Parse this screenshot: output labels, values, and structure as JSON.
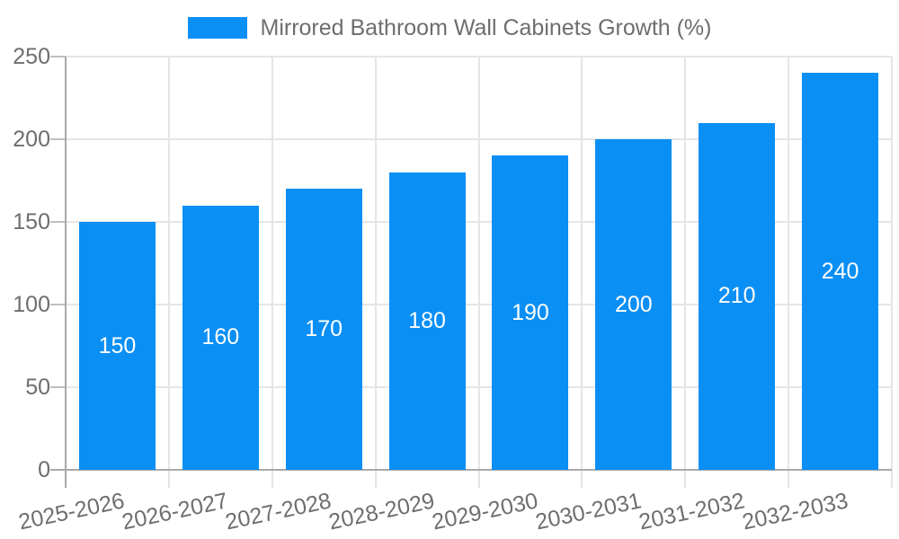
{
  "legend": {
    "series_label": "Mirrored Bathroom Wall Cabinets Growth (%)"
  },
  "chart_data": {
    "type": "bar",
    "title": "",
    "xlabel": "",
    "ylabel": "",
    "categories": [
      "2025-2026",
      "2026-2027",
      "2027-2028",
      "2028-2029",
      "2029-2030",
      "2030-2031",
      "2031-2032",
      "2032-2033"
    ],
    "series": [
      {
        "name": "Mirrored Bathroom Wall Cabinets Growth (%)",
        "values": [
          150,
          160,
          170,
          180,
          190,
          200,
          210,
          240
        ]
      }
    ],
    "value_labels_shown": true,
    "ylim": [
      0,
      250
    ],
    "yticks": [
      0,
      50,
      100,
      150,
      200,
      250
    ],
    "grid": true,
    "legend_position": "top-center",
    "x_tick_rotation_deg": -12,
    "colors": {
      "bar": "#0A8FF5",
      "grid": "#E5E5E5",
      "axis": "#A9A9A9",
      "tick": "#BFBFBF",
      "tick_label": "#6E6E6E",
      "value_label": "#FFFFFF",
      "background": "#FFFFFF"
    }
  }
}
